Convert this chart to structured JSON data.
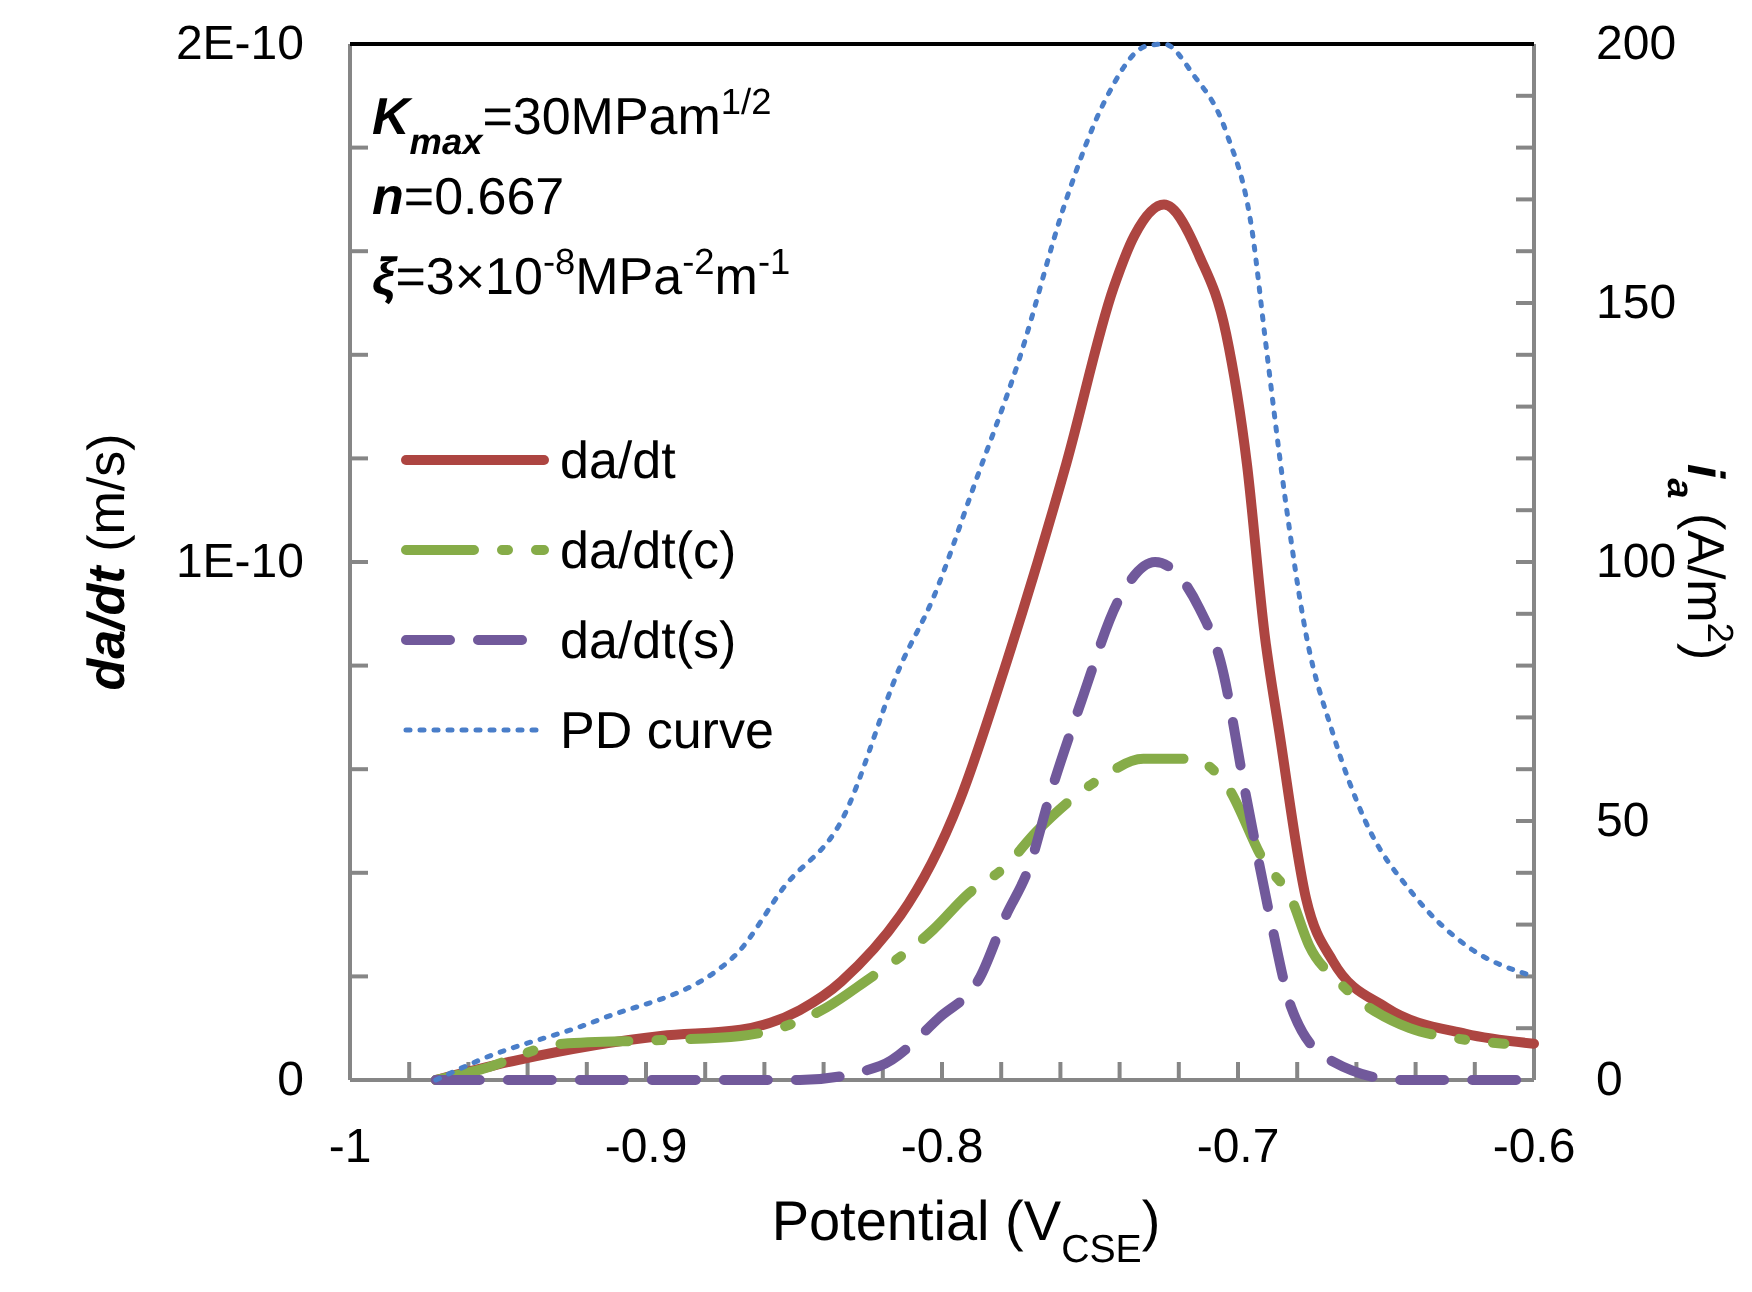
{
  "chart_data": {
    "type": "line",
    "xlabel": "Potential (V$_{CSE}$)",
    "ylabel": "da/dt (m/s)",
    "y2label": "i$_{a}$ (A/m$^{2}$)",
    "annotations": [
      "K$_{max}$=30MPam$^{1/2}$",
      "n=0.667",
      "ξ=3×10$^{-8}$MPa$^{-2}$m$^{-1}$"
    ],
    "xlim": [
      -1,
      -0.6
    ],
    "xticks": [
      -1,
      {
        "value": -0.98,
        "label": null
      },
      {
        "value": -0.96,
        "label": null
      },
      {
        "value": -0.94,
        "label": null
      },
      {
        "value": -0.92,
        "label": null
      },
      -0.9,
      {
        "value": -0.88,
        "label": null
      },
      {
        "value": -0.86,
        "label": null
      },
      {
        "value": -0.84,
        "label": null
      },
      {
        "value": -0.82,
        "label": null
      },
      -0.8,
      {
        "value": -0.78,
        "label": null
      },
      {
        "value": -0.76,
        "label": null
      },
      {
        "value": -0.74,
        "label": null
      },
      {
        "value": -0.72,
        "label": null
      },
      -0.7,
      {
        "value": -0.68,
        "label": null
      },
      {
        "value": -0.66,
        "label": null
      },
      {
        "value": -0.64,
        "label": null
      },
      {
        "value": -0.62,
        "label": null
      },
      -0.6
    ],
    "ylim": [
      0,
      2e-10
    ],
    "yticks": [
      0,
      {
        "value": 2e-11,
        "label": null
      },
      {
        "value": 4e-11,
        "label": null
      },
      {
        "value": 6e-11,
        "label": null
      },
      {
        "value": 8e-11,
        "label": null
      },
      {
        "value": 1e-10,
        "label": "1E-10"
      },
      {
        "value": 1.2e-10,
        "label": null
      },
      {
        "value": 1.4e-10,
        "label": null
      },
      {
        "value": 1.6e-10,
        "label": null
      },
      {
        "value": 1.8e-10,
        "label": null
      },
      {
        "value": 2e-10,
        "label": "2E-10"
      }
    ],
    "y2lim": [
      0,
      200
    ],
    "y2ticks": [
      0,
      {
        "value": 10,
        "label": null
      },
      {
        "value": 20,
        "label": null
      },
      {
        "value": 30,
        "label": null
      },
      {
        "value": 40,
        "label": null
      },
      50,
      {
        "value": 60,
        "label": null
      },
      {
        "value": 70,
        "label": null
      },
      {
        "value": 80,
        "label": null
      },
      {
        "value": 90,
        "label": null
      },
      100,
      {
        "value": 110,
        "label": null
      },
      {
        "value": 120,
        "label": null
      },
      {
        "value": 130,
        "label": null
      },
      {
        "value": 140,
        "label": null
      },
      150,
      {
        "value": 160,
        "label": null
      },
      {
        "value": 170,
        "label": null
      },
      {
        "value": 180,
        "label": null
      },
      {
        "value": 190,
        "label": null
      },
      200
    ],
    "legend": "left",
    "series": [
      {
        "name": "da/dt",
        "color": "#ad4541",
        "line_style": "solid",
        "x": [
          -0.971,
          -0.943,
          -0.895,
          -0.868,
          -0.848,
          -0.834,
          -0.794,
          -0.778,
          -0.758,
          -0.742,
          -0.735,
          -0.725,
          -0.713,
          -0.704,
          -0.697,
          -0.691,
          -0.686,
          -0.677,
          -0.668,
          -0.65,
          -0.623,
          -0.6
        ],
        "values": [
          0,
          3.9e-12,
          8.5e-12,
          9.7e-12,
          1.35e-11,
          1.9e-11,
          5.4e-11,
          8.1e-11,
          1.19e-10,
          1.53e-10,
          1.63e-10,
          1.69e-10,
          1.59e-10,
          1.44e-10,
          1.19e-10,
          8.6e-11,
          6.7e-11,
          3.5e-11,
          2.3e-11,
          1.4e-11,
          8.9e-12,
          7e-12
        ]
      },
      {
        "name": "da/dt(c)",
        "color": "#86ac48",
        "line_style": "dashdot",
        "x": [
          -0.971,
          -0.956,
          -0.928,
          -0.895,
          -0.868,
          -0.839,
          -0.826,
          -0.803,
          -0.791,
          -0.779,
          -0.768,
          -0.747,
          -0.732,
          -0.716,
          -0.704,
          -0.691,
          -0.682,
          -0.676,
          -0.666,
          -0.642,
          -0.627,
          -0.61
        ],
        "values": [
          0,
          2e-12,
          7e-12,
          7.7e-12,
          8.5e-12,
          1.4e-11,
          1.9e-11,
          2.9e-11,
          3.6e-11,
          4.1e-11,
          4.8e-11,
          5.8e-11,
          6.2e-11,
          6.2e-11,
          5.7e-11,
          4.2e-11,
          3.5e-11,
          2.6e-11,
          1.9e-11,
          1e-11,
          8.1e-12,
          7e-12
        ]
      },
      {
        "name": "da/dt(s)",
        "color": "#71599b",
        "line_style": "dashed",
        "x": [
          -0.971,
          -0.848,
          -0.821,
          -0.801,
          -0.787,
          -0.779,
          -0.77,
          -0.764,
          -0.753,
          -0.74,
          -0.728,
          -0.713,
          -0.706,
          -0.697,
          -0.689,
          -0.682,
          -0.669,
          -0.645,
          -0.6
        ],
        "values": [
          0,
          0,
          2.7e-12,
          1.2e-11,
          2e-11,
          3.1e-11,
          4.2e-11,
          5.4e-11,
          7.3e-11,
          9.3e-11,
          1e-10,
          9.1e-11,
          8.1e-11,
          5.4e-11,
          3.1e-11,
          1.4e-11,
          3.9e-12,
          0,
          0
        ]
      },
      {
        "name": "PD curve",
        "color": "#4a7ec9",
        "line_style": "dotted",
        "axis": "y2",
        "x": [
          -0.971,
          -0.956,
          -0.916,
          -0.87,
          -0.853,
          -0.834,
          -0.814,
          -0.803,
          -0.789,
          -0.774,
          -0.758,
          -0.745,
          -0.731,
          -0.725,
          -0.715,
          -0.704,
          -0.695,
          -0.691,
          -0.684,
          -0.677,
          -0.668,
          -0.657,
          -0.641,
          -0.623,
          -0.6
        ],
        "values": [
          0,
          3.9,
          11.6,
          24,
          37.5,
          50,
          80,
          93,
          115,
          139,
          170,
          189,
          199.6,
          200,
          194,
          183,
          163,
          144,
          112,
          86,
          67,
          50,
          36,
          26,
          20
        ]
      }
    ]
  }
}
